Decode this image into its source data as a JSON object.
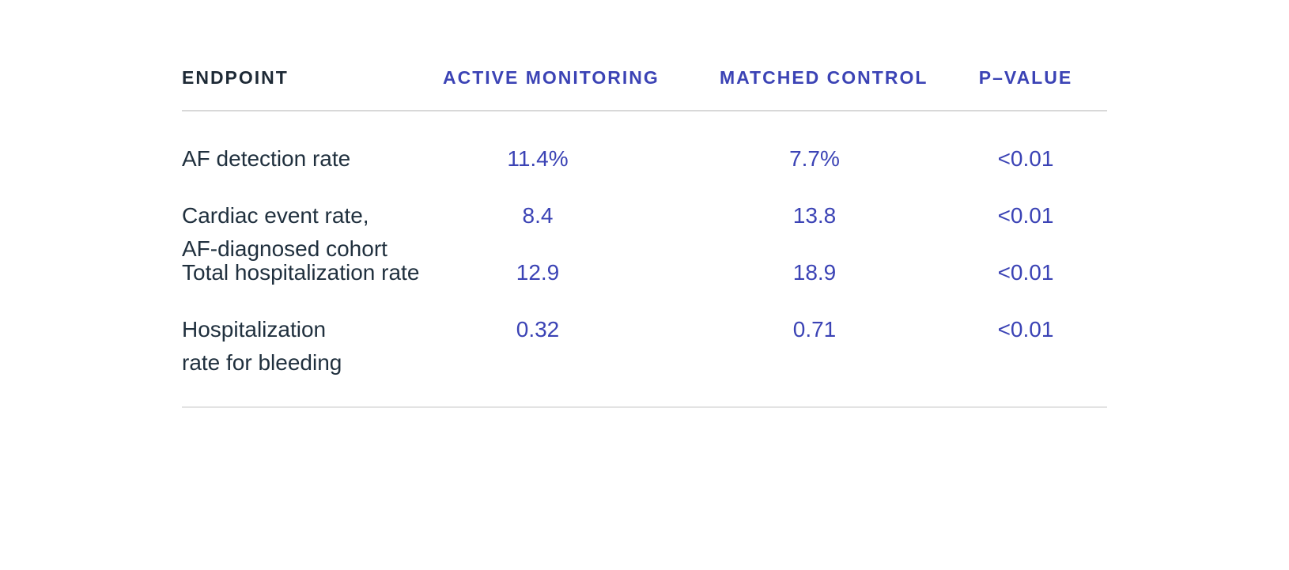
{
  "colors": {
    "accent_blue": "#3b43b5",
    "heading_dark": "#1d2935",
    "body_text": "#20303e",
    "divider_top": "#d8d8d8",
    "divider_bottom": "#e3e3e3",
    "background": "#ffffff"
  },
  "table": {
    "header": {
      "endpoint": "ENDPOINT",
      "active_monitoring": "ACTIVE MONITORING",
      "matched_control": "MATCHED CONTROL",
      "p_value": "P–VALUE"
    },
    "rows": [
      {
        "endpoint_line1": "AF detection rate",
        "endpoint_line2": "",
        "active_monitoring": "11.4%",
        "matched_control": "7.7%",
        "p_value": "<0.01"
      },
      {
        "endpoint_line1": "Cardiac event rate,",
        "endpoint_line2": "AF-diagnosed cohort",
        "active_monitoring": "8.4",
        "matched_control": "13.8",
        "p_value": "<0.01"
      },
      {
        "endpoint_line1": "Total hospitalization rate",
        "endpoint_line2": "",
        "active_monitoring": "12.9",
        "matched_control": "18.9",
        "p_value": "<0.01"
      },
      {
        "endpoint_line1": "Hospitalization",
        "endpoint_line2": "rate for bleeding",
        "active_monitoring": "0.32",
        "matched_control": "0.71",
        "p_value": "<0.01"
      }
    ]
  },
  "chart_data": {
    "type": "table",
    "title": "",
    "columns": [
      "ENDPOINT",
      "ACTIVE MONITORING",
      "MATCHED CONTROL",
      "P–VALUE"
    ],
    "rows": [
      [
        "AF detection rate",
        "11.4%",
        "7.7%",
        "<0.01"
      ],
      [
        "Cardiac event rate, AF-diagnosed cohort",
        "8.4",
        "13.8",
        "<0.01"
      ],
      [
        "Total hospitalization rate",
        "12.9",
        "18.9",
        "<0.01"
      ],
      [
        "Hospitalization rate for bleeding",
        "0.32",
        "0.71",
        "<0.01"
      ]
    ]
  }
}
